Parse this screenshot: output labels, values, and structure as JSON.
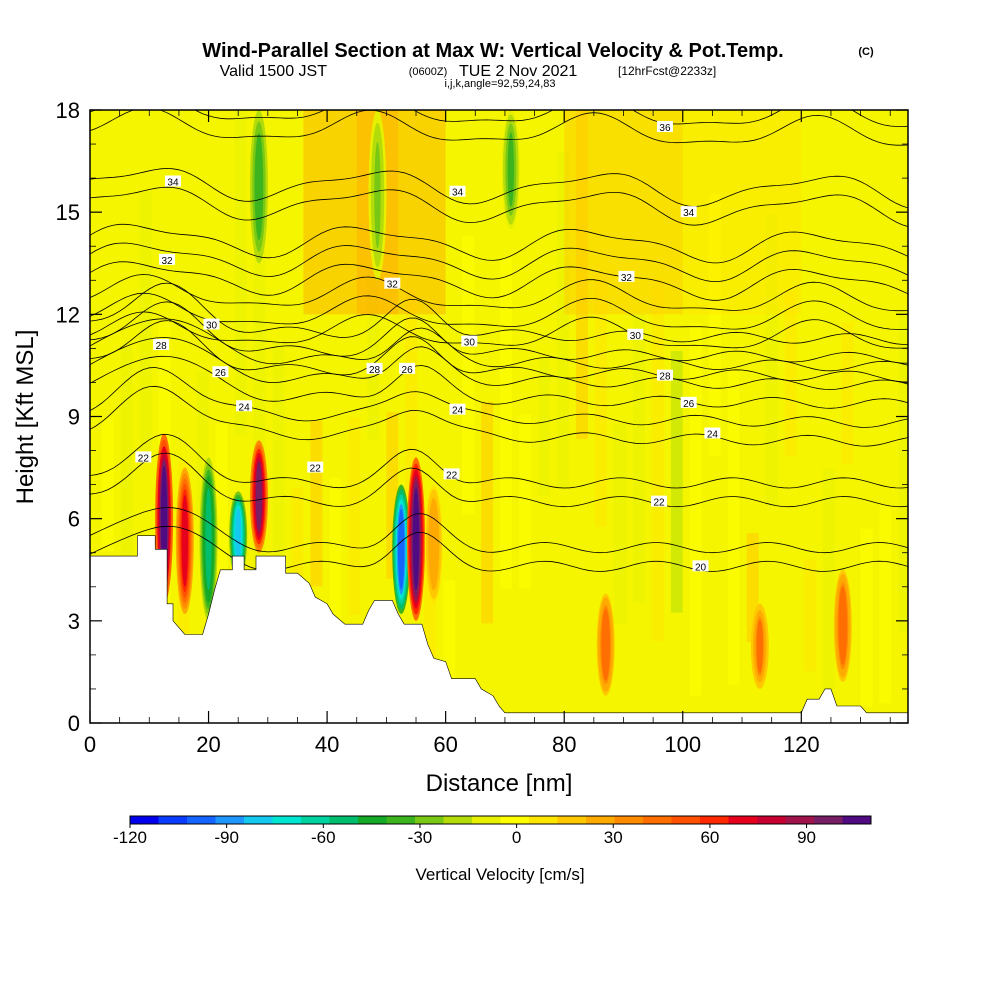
{
  "title": {
    "main": "Wind-Parallel Section at Max W: Vertical Velocity & Pot.Temp.",
    "copyright": "(C)",
    "valid_prefix": "Valid 1500 JST",
    "valid_utc": "(0600Z)",
    "valid_date": "TUE 2 Nov 2021",
    "forecast": "[12hrFcst@2233z]",
    "params": "i,j,k,angle=92,59,24,83"
  },
  "colorbar": {
    "label": "Vertical Velocity [cm/s]",
    "tick_labels": [
      "-120",
      "-90",
      "-60",
      "-30",
      "0",
      "30",
      "60",
      "90"
    ],
    "tick_values": [
      -120,
      -90,
      -60,
      -30,
      0,
      30,
      60,
      90
    ],
    "min": -120,
    "max": 110,
    "colors": [
      "#0000ee",
      "#0a3cff",
      "#1464ff",
      "#1e96ff",
      "#14c8f0",
      "#00e6d2",
      "#00d2a0",
      "#00be6e",
      "#14aa28",
      "#3cb41e",
      "#78c814",
      "#b4dc0a",
      "#e6f000",
      "#ffff00",
      "#ffe600",
      "#ffc800",
      "#ffaa00",
      "#ff8c00",
      "#ff6e00",
      "#ff5000",
      "#ff2800",
      "#e6001e",
      "#c80032",
      "#a0144b",
      "#781e64",
      "#500a82"
    ]
  },
  "chart_data": {
    "type": "heatmap",
    "description_fields": "filled vertical velocity shading with potential temperature contours",
    "xlabel": "Distance [nm]",
    "ylabel": "Height [Kft MSL]",
    "xlim": [
      0,
      138
    ],
    "ylim": [
      0,
      18
    ],
    "x_ticks": [
      0,
      20,
      40,
      60,
      80,
      100,
      120
    ],
    "y_ticks": [
      0,
      3,
      6,
      9,
      12,
      15,
      18
    ],
    "velocity_features": [
      {
        "x": 12.5,
        "ztop": 8.5,
        "zbot": 3.5,
        "w": 110
      },
      {
        "x": 16,
        "ztop": 7.5,
        "zbot": 3.2,
        "w": 70
      },
      {
        "x": 20,
        "ztop": 7.8,
        "zbot": 3.0,
        "w": -55
      },
      {
        "x": 25,
        "ztop": 6.8,
        "zbot": 4.2,
        "w": -80
      },
      {
        "x": 28.5,
        "ztop": 8.3,
        "zbot": 5.0,
        "w": 95
      },
      {
        "x": 52.5,
        "ztop": 7.0,
        "zbot": 3.2,
        "w": -100
      },
      {
        "x": 55,
        "ztop": 7.8,
        "zbot": 3.0,
        "w": 115
      },
      {
        "x": 58,
        "ztop": 7.0,
        "zbot": 3.5,
        "w": 30
      },
      {
        "x": 28.5,
        "ztop": 18,
        "zbot": 13.5,
        "w": -40
      },
      {
        "x": 71,
        "ztop": 18,
        "zbot": 14.5,
        "w": -35
      },
      {
        "x": 48.5,
        "ztop": 18,
        "zbot": 13,
        "w": -25
      },
      {
        "x": 87,
        "ztop": 3.8,
        "zbot": 0.8,
        "w": 45
      },
      {
        "x": 113,
        "ztop": 3.5,
        "zbot": 1.0,
        "w": 40
      },
      {
        "x": 127,
        "ztop": 4.5,
        "zbot": 1.2,
        "w": 45
      }
    ],
    "terrain": [
      [
        0,
        4.9
      ],
      [
        8,
        4.9
      ],
      [
        8,
        5.5
      ],
      [
        11,
        5.5
      ],
      [
        11,
        5.1
      ],
      [
        13,
        5.1
      ],
      [
        13,
        3.5
      ],
      [
        14,
        3.5
      ],
      [
        14,
        3.0
      ],
      [
        16,
        2.6
      ],
      [
        19,
        2.6
      ],
      [
        20,
        3.2
      ],
      [
        21,
        3.9
      ],
      [
        22,
        4.5
      ],
      [
        24,
        4.5
      ],
      [
        24,
        4.9
      ],
      [
        26,
        4.9
      ],
      [
        26,
        4.5
      ],
      [
        28,
        4.5
      ],
      [
        28,
        4.9
      ],
      [
        33,
        4.9
      ],
      [
        33,
        4.4
      ],
      [
        35,
        4.4
      ],
      [
        37,
        4.1
      ],
      [
        38,
        3.7
      ],
      [
        40,
        3.5
      ],
      [
        41,
        3.2
      ],
      [
        43,
        2.9
      ],
      [
        46,
        2.9
      ],
      [
        47,
        3.3
      ],
      [
        48,
        3.6
      ],
      [
        51,
        3.6
      ],
      [
        52,
        3.2
      ],
      [
        53,
        2.9
      ],
      [
        56,
        2.9
      ],
      [
        57,
        2.3
      ],
      [
        58,
        1.9
      ],
      [
        60,
        1.8
      ],
      [
        61,
        1.3
      ],
      [
        65,
        1.3
      ],
      [
        66,
        1.0
      ],
      [
        68,
        0.8
      ],
      [
        69,
        0.5
      ],
      [
        70,
        0.3
      ],
      [
        120,
        0.3
      ],
      [
        121,
        0.7
      ],
      [
        123,
        0.7
      ],
      [
        124,
        1.0
      ],
      [
        125,
        1.0
      ],
      [
        126,
        0.5
      ],
      [
        130,
        0.5
      ],
      [
        131,
        0.3
      ],
      [
        138,
        0.3
      ]
    ],
    "theta_levels": [
      20,
      22,
      24,
      26,
      28,
      30,
      32,
      34,
      36
    ],
    "contour_labels": [
      {
        "text": "22",
        "x": 9,
        "y": 7.8
      },
      {
        "text": "24",
        "x": 26,
        "y": 9.3
      },
      {
        "text": "26",
        "x": 22,
        "y": 10.3
      },
      {
        "text": "28",
        "x": 12,
        "y": 11.1
      },
      {
        "text": "30",
        "x": 20.5,
        "y": 11.7
      },
      {
        "text": "32",
        "x": 13,
        "y": 13.6
      },
      {
        "text": "34",
        "x": 14,
        "y": 15.9
      },
      {
        "text": "22",
        "x": 38,
        "y": 7.5
      },
      {
        "text": "28",
        "x": 48,
        "y": 10.4
      },
      {
        "text": "26",
        "x": 53.5,
        "y": 10.4
      },
      {
        "text": "32",
        "x": 51,
        "y": 12.9
      },
      {
        "text": "34",
        "x": 62,
        "y": 15.6
      },
      {
        "text": "30",
        "x": 64,
        "y": 11.2
      },
      {
        "text": "24",
        "x": 62,
        "y": 9.2
      },
      {
        "text": "22",
        "x": 61,
        "y": 7.3
      },
      {
        "text": "36",
        "x": 97,
        "y": 17.5
      },
      {
        "text": "34",
        "x": 101,
        "y": 15
      },
      {
        "text": "32",
        "x": 90.5,
        "y": 13.1
      },
      {
        "text": "30",
        "x": 92,
        "y": 11.4
      },
      {
        "text": "28",
        "x": 97,
        "y": 10.2
      },
      {
        "text": "26",
        "x": 101,
        "y": 9.4
      },
      {
        "text": "24",
        "x": 105,
        "y": 8.5
      },
      {
        "text": "22",
        "x": 96,
        "y": 6.5
      },
      {
        "text": "20",
        "x": 103,
        "y": 4.6
      }
    ]
  }
}
